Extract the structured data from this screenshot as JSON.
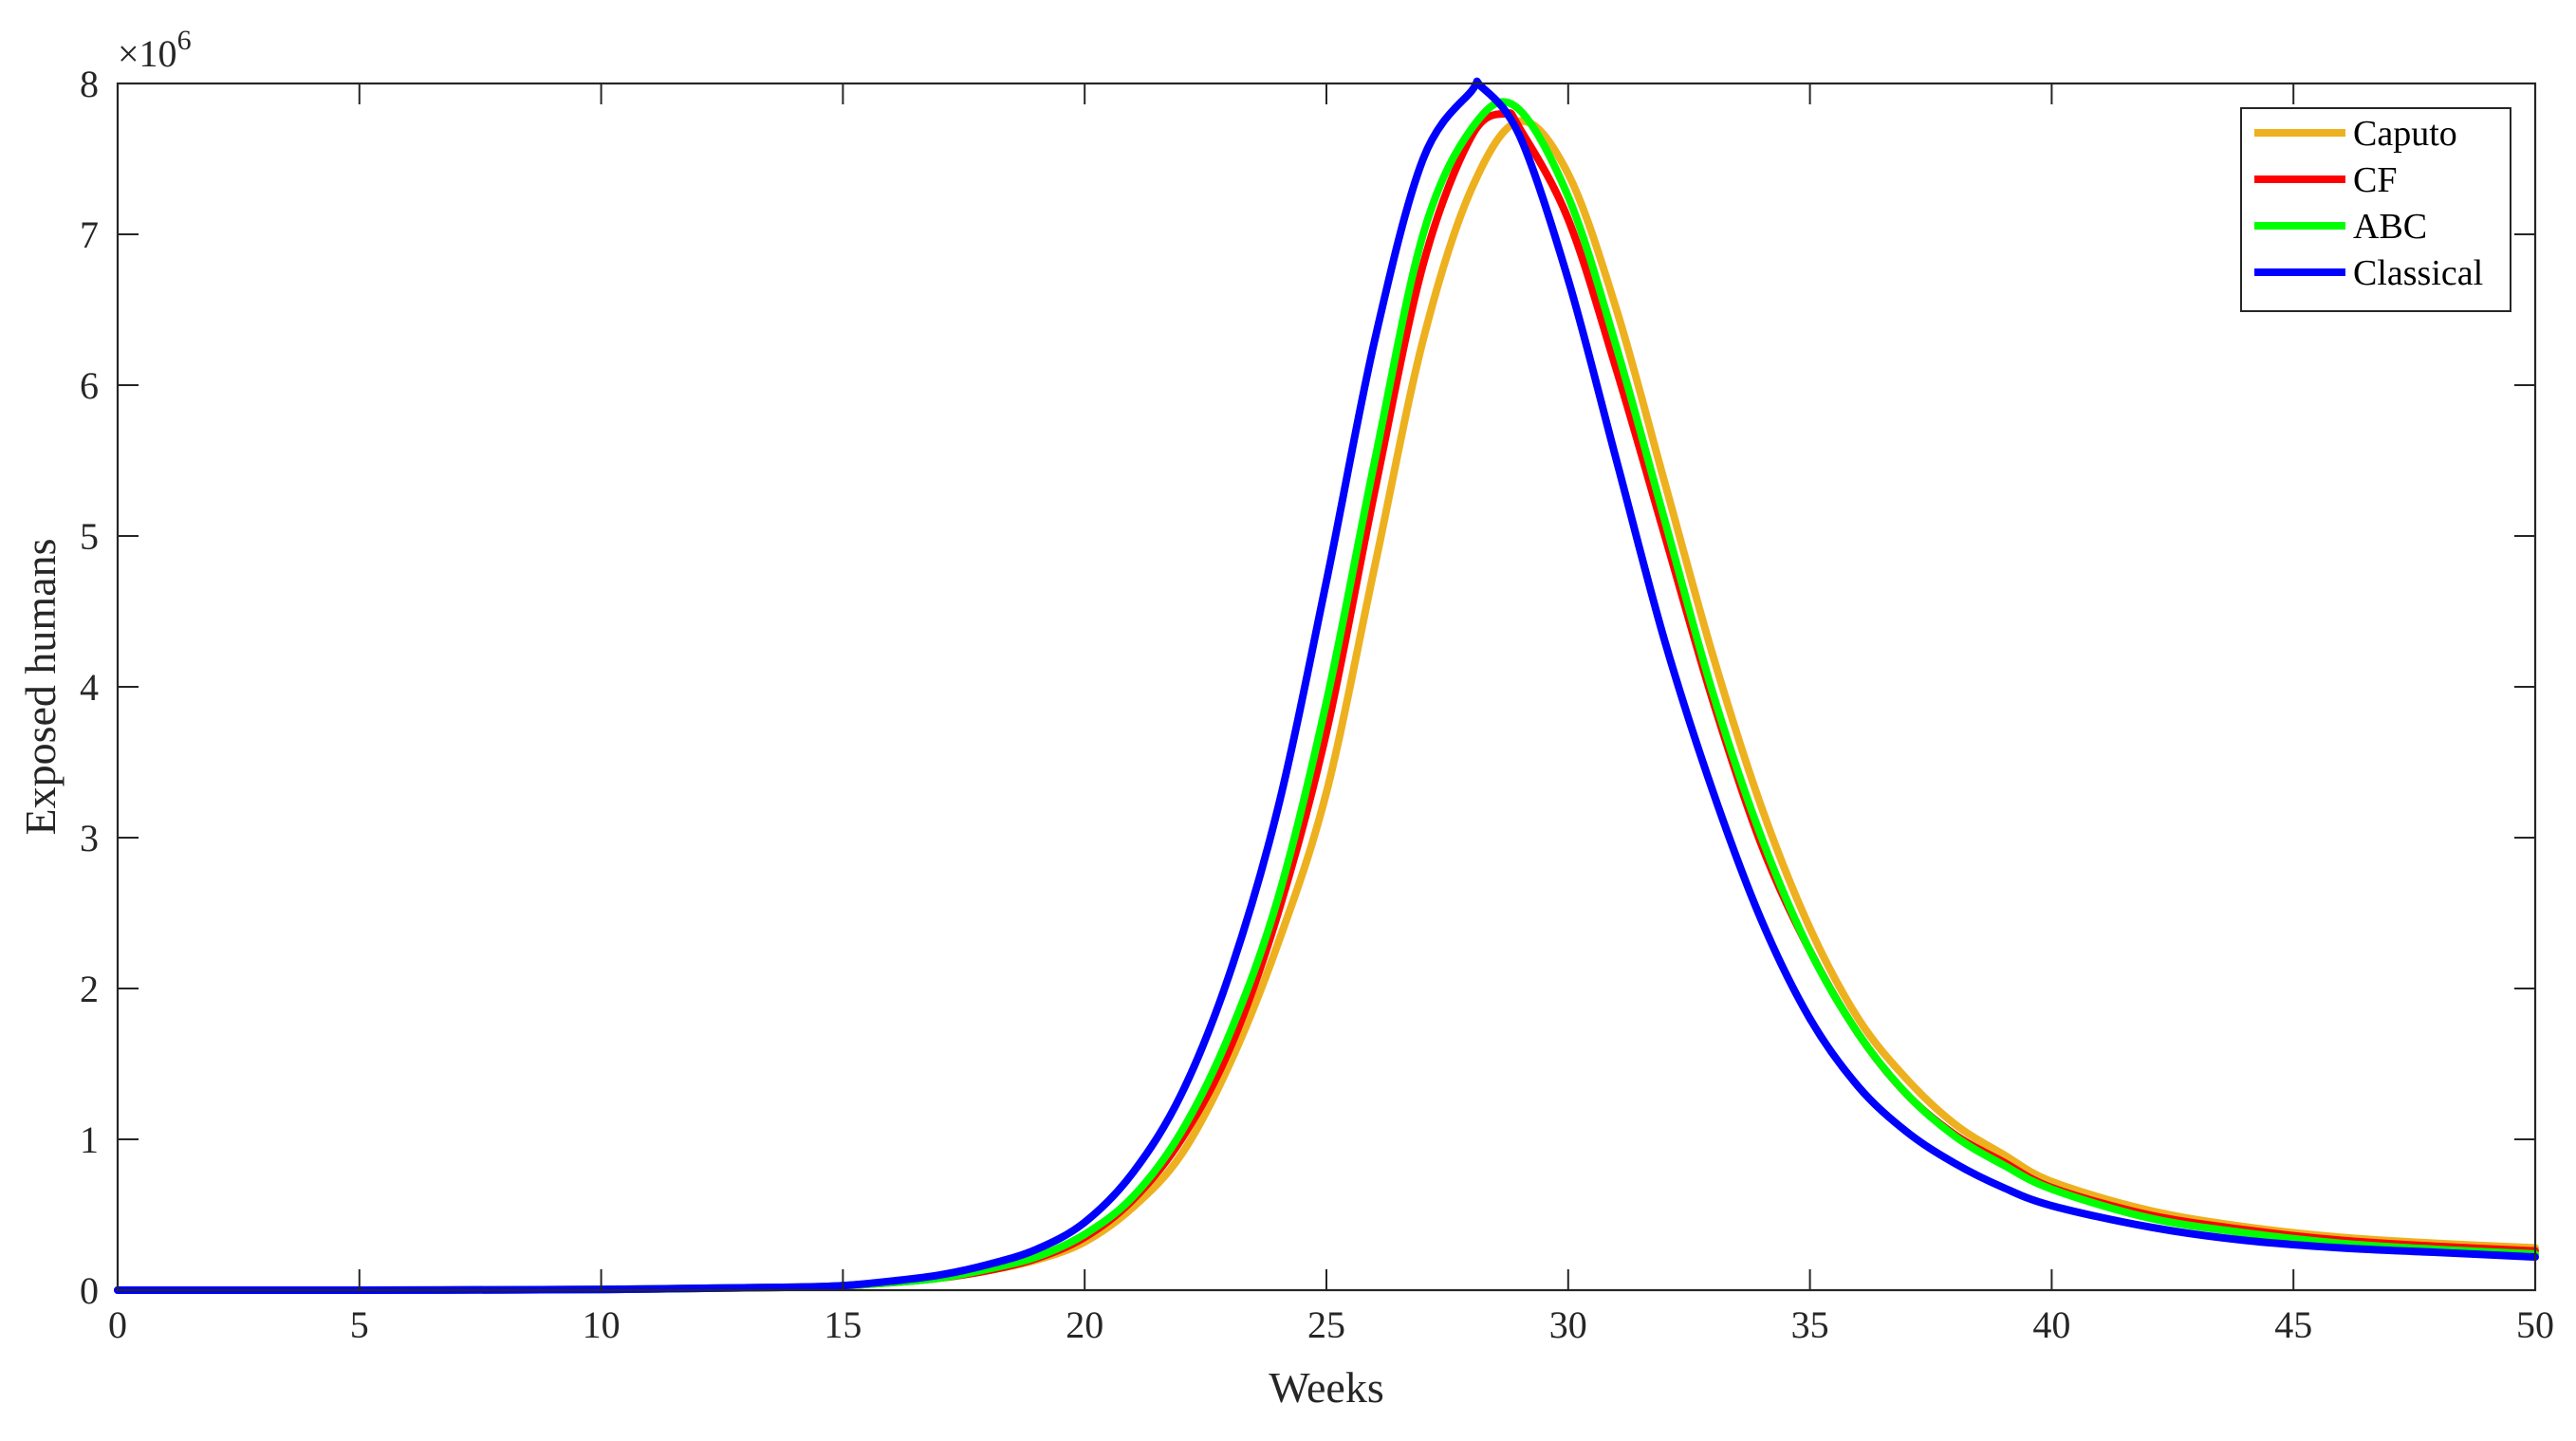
{
  "chart_data": {
    "type": "line",
    "title": "",
    "xlabel": "Weeks",
    "ylabel": "Exposed humans",
    "y_exponent_label": "×10",
    "y_exponent_power": "6",
    "xlim": [
      0,
      50
    ],
    "ylim": [
      0,
      8
    ],
    "xticks": [
      0,
      5,
      10,
      15,
      20,
      25,
      30,
      35,
      40,
      45,
      50
    ],
    "yticks": [
      0,
      1,
      2,
      3,
      4,
      5,
      6,
      7,
      8
    ],
    "xtick_labels": [
      "0",
      "5",
      "10",
      "15",
      "20",
      "25",
      "30",
      "35",
      "40",
      "45",
      "50"
    ],
    "ytick_labels": [
      "0",
      "1",
      "2",
      "3",
      "4",
      "5",
      "6",
      "7",
      "8"
    ],
    "grid": false,
    "legend_position": "top-right",
    "series": [
      {
        "name": "Caputo",
        "color": "#EDB120",
        "x": [
          0,
          5,
          10,
          14,
          15,
          16,
          17,
          18,
          19,
          20,
          21,
          22,
          23,
          24,
          25,
          26,
          27,
          28,
          29,
          30,
          31,
          32,
          33,
          34,
          35,
          36,
          37,
          38,
          39,
          40,
          42,
          44,
          46,
          48,
          50
        ],
        "y": [
          0.0,
          0.0,
          0.005,
          0.02,
          0.03,
          0.05,
          0.08,
          0.13,
          0.2,
          0.32,
          0.55,
          0.9,
          1.5,
          2.3,
          3.3,
          4.8,
          6.3,
          7.3,
          7.75,
          7.4,
          6.5,
          5.35,
          4.2,
          3.2,
          2.4,
          1.8,
          1.4,
          1.1,
          0.9,
          0.72,
          0.53,
          0.42,
          0.35,
          0.31,
          0.28
        ]
      },
      {
        "name": "CF",
        "color": "#FF0000",
        "x": [
          0,
          5,
          10,
          14,
          15,
          16,
          17,
          18,
          19,
          20,
          21,
          22,
          23,
          24,
          25,
          26,
          27,
          28,
          28.7,
          29,
          30,
          31,
          32,
          33,
          34,
          35,
          36,
          37,
          38,
          39,
          40,
          42,
          44,
          46,
          48,
          50
        ],
        "y": [
          0.0,
          0.0,
          0.005,
          0.02,
          0.03,
          0.05,
          0.08,
          0.13,
          0.21,
          0.35,
          0.6,
          1.0,
          1.6,
          2.5,
          3.7,
          5.3,
          6.8,
          7.65,
          7.8,
          7.7,
          7.1,
          6.1,
          5.0,
          3.9,
          2.95,
          2.25,
          1.7,
          1.3,
          1.03,
          0.85,
          0.68,
          0.5,
          0.4,
          0.33,
          0.29,
          0.26
        ]
      },
      {
        "name": "ABC",
        "color": "#00FF00",
        "x": [
          0,
          5,
          10,
          14,
          15,
          16,
          17,
          18,
          19,
          20,
          21,
          22,
          23,
          24,
          25,
          26,
          27,
          28,
          28.9,
          30,
          31,
          32,
          33,
          34,
          35,
          36,
          37,
          38,
          39,
          40,
          42,
          44,
          46,
          48,
          50
        ],
        "y": [
          0.0,
          0.0,
          0.005,
          0.02,
          0.03,
          0.05,
          0.08,
          0.14,
          0.22,
          0.37,
          0.62,
          1.05,
          1.7,
          2.6,
          3.9,
          5.5,
          7.0,
          7.7,
          7.85,
          7.25,
          6.25,
          5.1,
          3.95,
          3.0,
          2.25,
          1.7,
          1.3,
          1.02,
          0.83,
          0.67,
          0.48,
          0.38,
          0.31,
          0.27,
          0.24
        ]
      },
      {
        "name": "Classical",
        "color": "#0000FF",
        "x": [
          0,
          5,
          10,
          14,
          15,
          16,
          17,
          18,
          19,
          20,
          21,
          22,
          23,
          24,
          25,
          26,
          27,
          28,
          28.2,
          29,
          30,
          31,
          32,
          33,
          34,
          35,
          36,
          37,
          38,
          39,
          40,
          42,
          44,
          46,
          48,
          50
        ],
        "y": [
          0.0,
          0.0,
          0.005,
          0.02,
          0.03,
          0.06,
          0.1,
          0.17,
          0.27,
          0.45,
          0.78,
          1.3,
          2.1,
          3.2,
          4.7,
          6.3,
          7.5,
          7.95,
          7.98,
          7.65,
          6.7,
          5.5,
          4.3,
          3.3,
          2.45,
          1.8,
          1.35,
          1.05,
          0.84,
          0.68,
          0.56,
          0.42,
          0.33,
          0.28,
          0.25,
          0.22
        ]
      }
    ]
  }
}
